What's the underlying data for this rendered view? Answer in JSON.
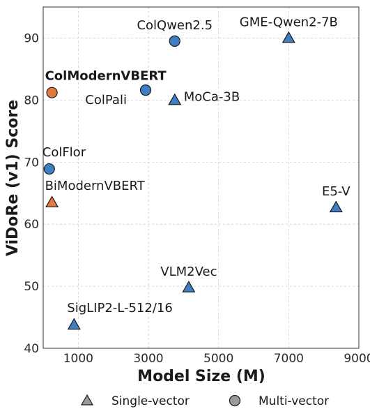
{
  "chart_data": {
    "type": "scatter",
    "title": "",
    "xlabel": "Model Size (M)",
    "ylabel": "ViDoRe (v1) Score",
    "xlim": [
      0,
      9000
    ],
    "ylim": [
      40,
      95
    ],
    "x_ticks": [
      1000,
      3000,
      5000,
      7000,
      9000
    ],
    "y_ticks": [
      40,
      50,
      60,
      70,
      80,
      90
    ],
    "grid": true,
    "grid_style": "dashed",
    "legend": {
      "placement": "bottom-center",
      "entries": [
        {
          "label": "Single-vector",
          "marker": "triangle"
        },
        {
          "label": "Multi-vector",
          "marker": "circle"
        }
      ]
    },
    "colors": {
      "blue": "#3f7fc1",
      "orange": "#e07a3f",
      "grid": "#cccccc",
      "edge": "#1a1a1a"
    },
    "points": [
      {
        "label": "ColQwen2.5",
        "x": 3750,
        "y": 89.5,
        "marker": "circle",
        "color": "blue",
        "bold": false,
        "anchor": "above"
      },
      {
        "label": "GME-Qwen2-7B",
        "x": 7000,
        "y": 90,
        "marker": "triangle",
        "color": "blue",
        "bold": false,
        "anchor": "above"
      },
      {
        "label": "ColModernVBERT",
        "x": 250,
        "y": 81.2,
        "marker": "circle",
        "color": "orange",
        "bold": true,
        "anchor": "above-right"
      },
      {
        "label": "ColPali",
        "x": 2920,
        "y": 81.6,
        "marker": "circle",
        "color": "blue",
        "bold": false,
        "anchor": "below-left"
      },
      {
        "label": "MoCa-3B",
        "x": 3750,
        "y": 80,
        "marker": "triangle",
        "color": "blue",
        "bold": false,
        "anchor": "right"
      },
      {
        "label": "ColFlor",
        "x": 174,
        "y": 68.9,
        "marker": "circle",
        "color": "blue",
        "bold": false,
        "anchor": "above-right"
      },
      {
        "label": "BiModernVBERT",
        "x": 250,
        "y": 63.5,
        "marker": "triangle",
        "color": "orange",
        "bold": false,
        "anchor": "above-right"
      },
      {
        "label": "E5-V",
        "x": 8350,
        "y": 62.7,
        "marker": "triangle",
        "color": "blue",
        "bold": false,
        "anchor": "above"
      },
      {
        "label": "VLM2Vec",
        "x": 4150,
        "y": 49.8,
        "marker": "triangle",
        "color": "blue",
        "bold": false,
        "anchor": "above"
      },
      {
        "label": "SigLIP2-L-512/16",
        "x": 880,
        "y": 43.8,
        "marker": "triangle",
        "color": "blue",
        "bold": false,
        "anchor": "above-right"
      }
    ]
  }
}
